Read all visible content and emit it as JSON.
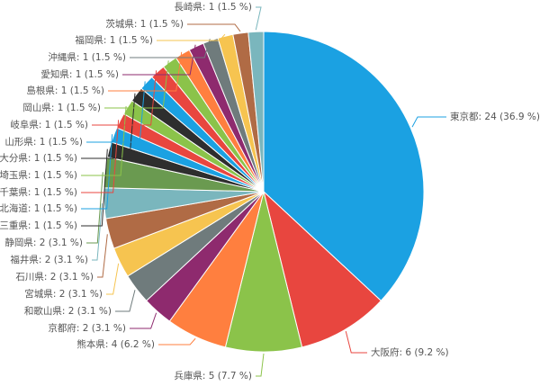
{
  "chart_data": {
    "type": "pie",
    "categories": [
      "東京都",
      "大阪府",
      "兵庫県",
      "熊本県",
      "京都府",
      "和歌山県",
      "宮城県",
      "石川県",
      "福井県",
      "静岡県",
      "三重県",
      "北海道",
      "千葉県",
      "埼玉県",
      "大分県",
      "山形県",
      "岐阜県",
      "岡山県",
      "島根県",
      "愛知県",
      "沖縄県",
      "福岡県",
      "茨城県",
      "長崎県"
    ],
    "values": [
      24,
      6,
      5,
      4,
      2,
      2,
      2,
      2,
      2,
      2,
      1,
      1,
      1,
      1,
      1,
      1,
      1,
      1,
      1,
      1,
      1,
      1,
      1,
      1
    ],
    "value_labels": [
      "24 (36.9 %)",
      "6 (9.2 %)",
      "5 (7.7 %)",
      "4 (6.2 %)",
      "2 (3.1 %)",
      "2 (3.1 %)",
      "2 (3.1 %)",
      "2 (3.1 %)",
      "2 (3.1 %)",
      "2 (3.1 %)",
      "1 (1.5 %)",
      "1 (1.5 %)",
      "1 (1.5 %)",
      "1 (1.5 %)",
      "1 (1.5 %)",
      "1 (1.5 %)",
      "1 (1.5 %)",
      "1 (1.5 %)",
      "1 (1.5 %)",
      "1 (1.5 %)",
      "1 (1.5 %)",
      "1 (1.5 %)",
      "1 (1.5 %)",
      "1 (1.5 %)"
    ],
    "colors": [
      "#1ba1e2",
      "#e8463f",
      "#8bc34a",
      "#ff7f3f",
      "#8e2a6e",
      "#6f7b7c",
      "#f6c450",
      "#b06b45",
      "#7ab6bd",
      "#6a9a50",
      "#2e2e2e",
      "#1ba1e2",
      "#e8463f",
      "#8bc34a",
      "#2e2e2e",
      "#1ba1e2",
      "#e8463f",
      "#8bc34a",
      "#ff7f3f",
      "#8e2a6e",
      "#6f7b7c",
      "#f6c450",
      "#b06b45",
      "#7ab6bd"
    ]
  }
}
